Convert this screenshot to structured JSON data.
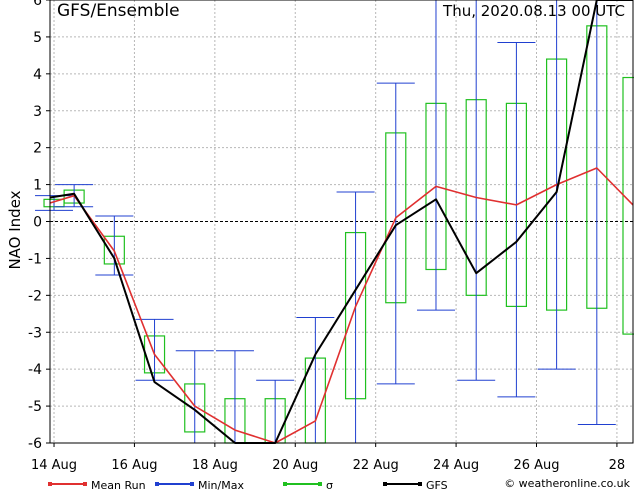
{
  "chart_data": {
    "type": "box-line",
    "title": "GFS/Ensemble",
    "run_time": "Thu, 2020.08.13  00 UTC",
    "ylabel": "NAO Index",
    "xlabel": "",
    "ylim": [
      -6,
      6
    ],
    "yticks": [
      -6,
      -5,
      -4,
      -3,
      -2,
      -1,
      0,
      1,
      2,
      3,
      4,
      5,
      6
    ],
    "x_day_range": [
      13.9,
      28.4
    ],
    "xticks": [
      {
        "day": 14,
        "label": "14 Aug"
      },
      {
        "day": 16,
        "label": "16 Aug"
      },
      {
        "day": 18,
        "label": "18 Aug"
      },
      {
        "day": 20,
        "label": "20 Aug"
      },
      {
        "day": 22,
        "label": "22 Aug"
      },
      {
        "day": 24,
        "label": "24 Aug"
      },
      {
        "day": 26,
        "label": "26 Aug"
      },
      {
        "day": 28,
        "label": "28"
      }
    ],
    "grid": true,
    "legend_position": "bottom",
    "credit": "© weatheronline.co.uk",
    "legend": [
      {
        "key": "mean",
        "label": "Mean Run",
        "color": "#e03030"
      },
      {
        "key": "minmax",
        "label": "Min/Max",
        "color": "#2040d0"
      },
      {
        "key": "sigma",
        "label": "σ",
        "color": "#20c020"
      },
      {
        "key": "gfs",
        "label": "GFS",
        "color": "#000000"
      }
    ],
    "ensemble": [
      {
        "day": 14.0,
        "min": 0.3,
        "max": 0.7,
        "sigma_low": 0.4,
        "sigma_high": 0.6
      },
      {
        "day": 14.5,
        "min": 0.4,
        "max": 1.0,
        "sigma_low": 0.5,
        "sigma_high": 0.85
      },
      {
        "day": 15.5,
        "min": -1.45,
        "max": 0.15,
        "sigma_low": -1.15,
        "sigma_high": -0.4
      },
      {
        "day": 16.5,
        "min": -4.3,
        "max": -2.65,
        "sigma_low": -4.1,
        "sigma_high": -3.1
      },
      {
        "day": 17.5,
        "min": -6.0,
        "max": -3.5,
        "sigma_low": -5.7,
        "sigma_high": -4.4
      },
      {
        "day": 18.5,
        "min": -6.0,
        "max": -3.5,
        "sigma_low": -6.0,
        "sigma_high": -4.8
      },
      {
        "day": 19.5,
        "min": -6.0,
        "max": -4.3,
        "sigma_low": -6.0,
        "sigma_high": -4.8
      },
      {
        "day": 20.5,
        "min": -6.0,
        "max": -2.6,
        "sigma_low": -6.0,
        "sigma_high": -3.7
      },
      {
        "day": 21.5,
        "min": -6.0,
        "max": 0.8,
        "sigma_low": -4.8,
        "sigma_high": -0.3
      },
      {
        "day": 22.5,
        "min": -4.4,
        "max": 3.75,
        "sigma_low": -2.2,
        "sigma_high": 2.4
      },
      {
        "day": 23.5,
        "min": -2.4,
        "max": 6.0,
        "sigma_low": -1.3,
        "sigma_high": 3.2
      },
      {
        "day": 24.5,
        "min": -4.3,
        "max": 6.0,
        "sigma_low": -2.0,
        "sigma_high": 3.3
      },
      {
        "day": 25.5,
        "min": -4.75,
        "max": 4.85,
        "sigma_low": -2.3,
        "sigma_high": 3.2
      },
      {
        "day": 26.5,
        "min": -4.0,
        "max": 6.0,
        "sigma_low": -2.4,
        "sigma_high": 4.4
      },
      {
        "day": 27.5,
        "min": -5.5,
        "max": 6.0,
        "sigma_low": -2.35,
        "sigma_high": 5.3
      },
      {
        "day": 28.4,
        "min": -6.0,
        "max": 6.0,
        "sigma_low": -3.05,
        "sigma_high": 3.9
      }
    ],
    "mean_run": {
      "x": [
        13.9,
        14.5,
        15.5,
        16.5,
        17.5,
        18.5,
        19.5,
        20.5,
        21.5,
        22.5,
        23.5,
        24.5,
        25.5,
        26.5,
        27.5,
        28.4
      ],
      "y": [
        0.5,
        0.7,
        -0.8,
        -3.6,
        -5.0,
        -5.65,
        -6.0,
        -5.4,
        -2.3,
        0.1,
        0.95,
        0.65,
        0.45,
        1.0,
        1.45,
        0.45
      ]
    },
    "gfs": {
      "x": [
        13.9,
        14.5,
        15.5,
        16.5,
        17.5,
        18.5,
        19.5,
        20.5,
        21.5,
        22.5,
        23.5,
        24.5,
        25.5,
        26.5,
        27.5,
        28.4
      ],
      "y": [
        0.65,
        0.75,
        -1.0,
        -4.35,
        -5.1,
        -6.0,
        -6.0,
        -3.6,
        -1.85,
        -0.1,
        0.6,
        -1.4,
        -0.55,
        0.8,
        6.0,
        6.0
      ]
    }
  }
}
